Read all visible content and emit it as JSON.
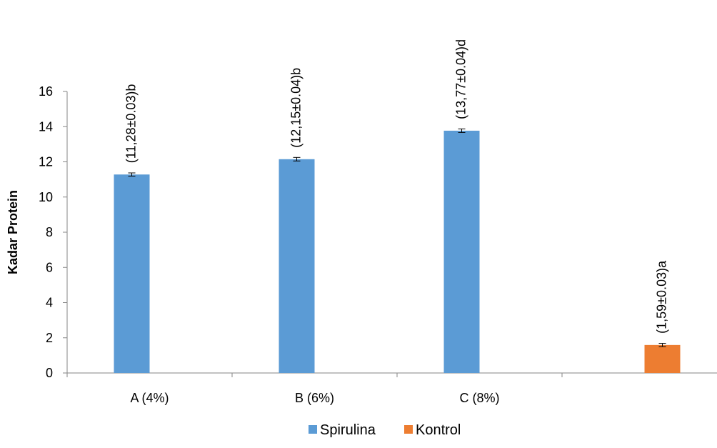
{
  "chart_data": {
    "type": "bar",
    "categories": [
      "A (4%)",
      "B (6%)",
      "C (8%)",
      ""
    ],
    "series": [
      {
        "name": "Spirulina",
        "color": "#5B9BD5",
        "values": [
          11.28,
          12.15,
          13.77,
          null
        ],
        "errors": [
          0.03,
          0.04,
          0.04,
          null
        ],
        "labels": [
          "(11,28±0.03)b",
          "(12,15±0.04)b",
          "(13,77±0.04)d",
          ""
        ]
      },
      {
        "name": "Kontrol",
        "color": "#ED7D31",
        "values": [
          null,
          null,
          null,
          1.59
        ],
        "errors": [
          null,
          null,
          null,
          0.03
        ],
        "labels": [
          "",
          "",
          "",
          "(1,59±0.03)a"
        ]
      }
    ],
    "ylabel": "Kadar Protein",
    "xlabel": "",
    "ylim": [
      0,
      16
    ],
    "yticks": [
      0,
      2,
      4,
      6,
      8,
      10,
      12,
      14,
      16
    ],
    "grid": false,
    "legend_position": "bottom"
  }
}
